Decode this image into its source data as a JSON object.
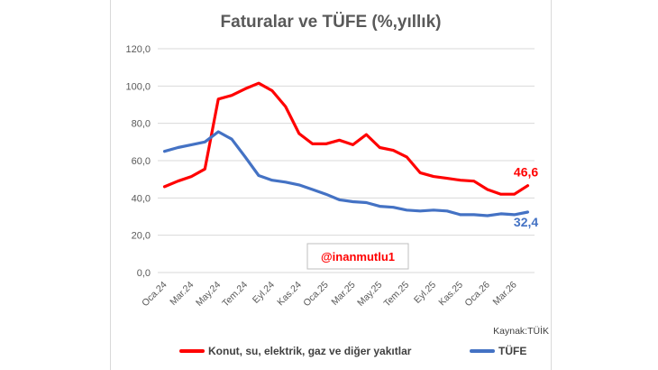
{
  "chart_data": {
    "type": "line",
    "title": "Faturalar ve TÜFE (%,yıllık)",
    "xlabel": "",
    "ylabel": "",
    "ylim": [
      0,
      120
    ],
    "yticks": [
      "0,0",
      "20,0",
      "40,0",
      "60,0",
      "80,0",
      "100,0",
      "120,0"
    ],
    "grid": true,
    "legend": "bottom",
    "x": [
      "Oca.24",
      "Şub.24",
      "Mar.24",
      "Nis.24",
      "May.24",
      "Haz.24",
      "Tem.24",
      "Ağu.24",
      "Eyl.24",
      "Eki.24",
      "Kas.24",
      "Ara.24",
      "Oca.25",
      "Şub.25",
      "Mar.25",
      "Nis.25",
      "May.25",
      "Haz.25",
      "Tem.25",
      "Ağu.25",
      "Eyl.25",
      "Eki.25",
      "Kas.25",
      "Ara.25",
      "Oca.26",
      "Şub.26",
      "Mar.26",
      "Nis.26"
    ],
    "xtick_labels": [
      "Oca.24",
      "Mar.24",
      "May.24",
      "Tem.24",
      "Eyl.24",
      "Kas.24",
      "Oca.25",
      "Mar.25",
      "May.25",
      "Tem.25",
      "Eyl.25",
      "Kas.25",
      "Oca.26",
      "Mar.26"
    ],
    "series": [
      {
        "name": "Konut, su, elektrik, gaz ve diğer yakıtlar",
        "color": "#ff0000",
        "values": [
          46.0,
          49.0,
          51.5,
          55.5,
          93.0,
          95.0,
          98.5,
          101.5,
          97.5,
          89.0,
          74.5,
          69.0,
          69.0,
          71.0,
          68.5,
          74.0,
          67.0,
          65.5,
          62.0,
          53.5,
          51.5,
          50.5,
          49.5,
          49.0,
          44.5,
          42.0,
          42.0,
          46.6
        ],
        "end_label": "46,6"
      },
      {
        "name": "TÜFE",
        "color": "#4472c4",
        "values": [
          65.0,
          67.0,
          68.5,
          70.0,
          75.5,
          71.5,
          62.0,
          52.0,
          49.5,
          48.5,
          47.0,
          44.5,
          42.0,
          39.0,
          38.0,
          37.5,
          35.5,
          35.0,
          33.5,
          33.0,
          33.5,
          33.0,
          31.0,
          31.0,
          30.5,
          31.5,
          31.0,
          32.4
        ],
        "end_label": "32,4"
      }
    ],
    "annotations": [
      {
        "text": "@inanmutlu1"
      }
    ],
    "source": "Kaynak:TÜİK"
  }
}
